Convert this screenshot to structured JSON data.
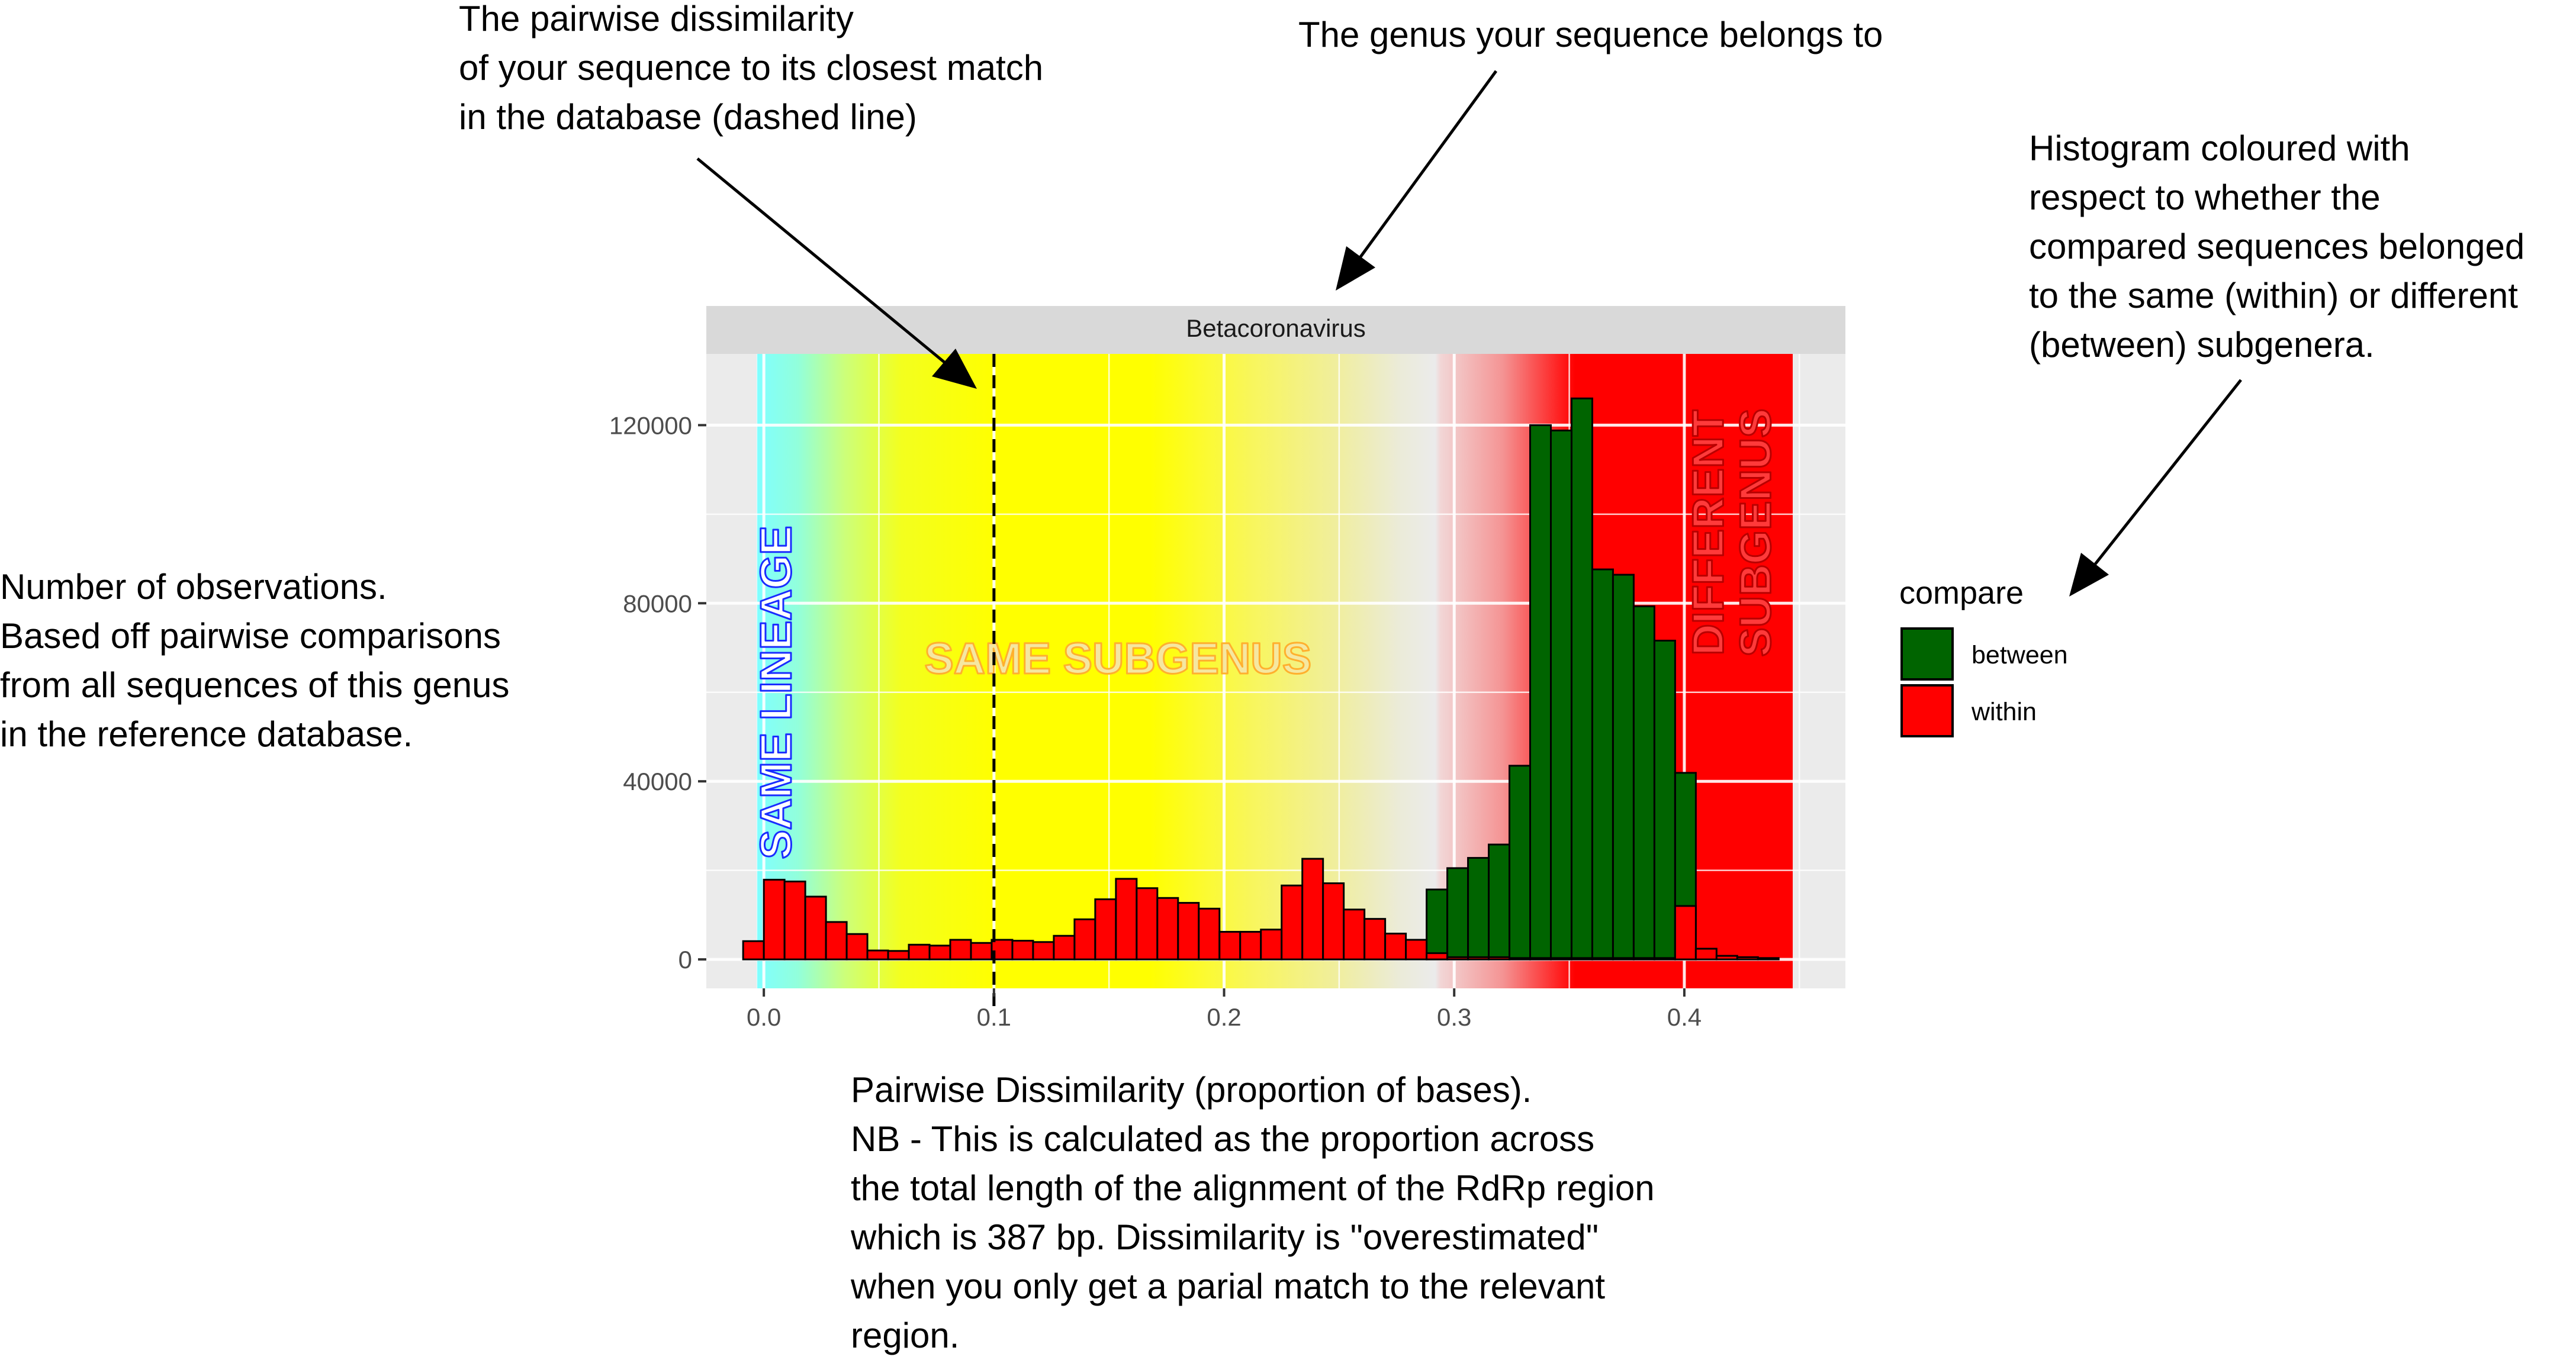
{
  "annotations": {
    "dissimilarity_note": [
      "The pairwise dissimilarity",
      "of your sequence to its closest match",
      "in the database (dashed line)"
    ],
    "genus_note": [
      "The genus your sequence belongs to"
    ],
    "histogram_note": [
      "Histogram coloured with",
      "respect to whether the",
      "compared sequences belonged",
      "to the same (within) or different",
      "(between) subgenera."
    ],
    "observations_note": [
      "Number of observations.",
      "Based off pairwise comparisons",
      "from all sequences of this genus",
      "in the reference database."
    ],
    "xaxis_note": [
      "Pairwise Dissimilarity (proportion of bases).",
      "NB - This is calculated as the proportion across",
      "the total length of the alignment of the RdRp region",
      "which is 387 bp. Dissimilarity is \"overestimated\"",
      "when you only get a parial match to the relevant",
      "region."
    ]
  },
  "chart_data": {
    "type": "bar",
    "facet_label": "Betacoronavirus",
    "xlabel": "",
    "ylabel": "",
    "xlim": [
      -0.025,
      0.47
    ],
    "ylim": [
      -6500,
      136000
    ],
    "x_ticks": [
      {
        "value": 0.0,
        "label": "0.0"
      },
      {
        "value": 0.1,
        "label": "0.1"
      },
      {
        "value": 0.2,
        "label": "0.2"
      },
      {
        "value": 0.3,
        "label": "0.3"
      },
      {
        "value": 0.4,
        "label": "0.4"
      }
    ],
    "y_ticks": [
      {
        "value": 0,
        "label": "0"
      },
      {
        "value": 40000,
        "label": "40000"
      },
      {
        "value": 80000,
        "label": "80000"
      },
      {
        "value": 120000,
        "label": "120000"
      }
    ],
    "grid": true,
    "bin_width": 0.009,
    "closest_match_dissimilarity": 0.1,
    "legend": {
      "title": "compare",
      "position": "right",
      "entries": [
        {
          "label": "between",
          "color": "#006400"
        },
        {
          "label": "within",
          "color": "#ff0000"
        }
      ]
    },
    "series": [
      {
        "name": "between",
        "color": "#006400",
        "bins": [
          [
            0.2925,
            15700
          ],
          [
            0.3015,
            20500
          ],
          [
            0.3105,
            22800
          ],
          [
            0.3195,
            25800
          ],
          [
            0.3285,
            43500
          ],
          [
            0.3375,
            120000
          ],
          [
            0.3465,
            118800
          ],
          [
            0.3555,
            126000
          ],
          [
            0.3645,
            87600
          ],
          [
            0.3735,
            86400
          ],
          [
            0.3825,
            79300
          ],
          [
            0.3915,
            71600
          ],
          [
            0.4005,
            41900
          ]
        ]
      },
      {
        "name": "within",
        "color": "#ff0000",
        "bins": [
          [
            -0.0045,
            4100
          ],
          [
            0.0045,
            17900
          ],
          [
            0.0135,
            17500
          ],
          [
            0.0225,
            14100
          ],
          [
            0.0315,
            8400
          ],
          [
            0.0405,
            5700
          ],
          [
            0.0495,
            2000
          ],
          [
            0.0585,
            1900
          ],
          [
            0.0675,
            3300
          ],
          [
            0.0765,
            3100
          ],
          [
            0.0855,
            4400
          ],
          [
            0.0945,
            3700
          ],
          [
            0.1035,
            4400
          ],
          [
            0.1125,
            4200
          ],
          [
            0.1215,
            3900
          ],
          [
            0.1305,
            5300
          ],
          [
            0.1395,
            9000
          ],
          [
            0.1485,
            13500
          ],
          [
            0.1575,
            18100
          ],
          [
            0.1665,
            16000
          ],
          [
            0.1755,
            13800
          ],
          [
            0.1845,
            12700
          ],
          [
            0.1935,
            11400
          ],
          [
            0.2025,
            6200
          ],
          [
            0.2115,
            6200
          ],
          [
            0.2205,
            6700
          ],
          [
            0.2295,
            16600
          ],
          [
            0.2385,
            22600
          ],
          [
            0.2475,
            17100
          ],
          [
            0.2565,
            11200
          ],
          [
            0.2655,
            9100
          ],
          [
            0.2745,
            5800
          ],
          [
            0.2835,
            4400
          ],
          [
            0.2925,
            1400
          ],
          [
            0.3015,
            500
          ],
          [
            0.3105,
            500
          ],
          [
            0.3195,
            500
          ],
          [
            0.3285,
            300
          ],
          [
            0.3375,
            300
          ],
          [
            0.3465,
            300
          ],
          [
            0.3555,
            300
          ],
          [
            0.3645,
            300
          ],
          [
            0.3735,
            300
          ],
          [
            0.3825,
            300
          ],
          [
            0.3915,
            300
          ],
          [
            0.4005,
            12000
          ],
          [
            0.4095,
            2400
          ],
          [
            0.4185,
            800
          ],
          [
            0.4275,
            500
          ],
          [
            0.4365,
            300
          ]
        ]
      }
    ],
    "regions": [
      {
        "label": "SAME LINEAGE",
        "text_color": "#1a2cff",
        "x0": -0.003,
        "x1": 0.01
      },
      {
        "label": "SAME SUBGENUS",
        "text_color": "#ffb02e",
        "x0": 0.1,
        "x1": 0.2
      },
      {
        "label": "DIFFERENT SUBGENUS",
        "text_color": "#b80000",
        "x0": 0.4,
        "x1": 0.443
      }
    ]
  }
}
